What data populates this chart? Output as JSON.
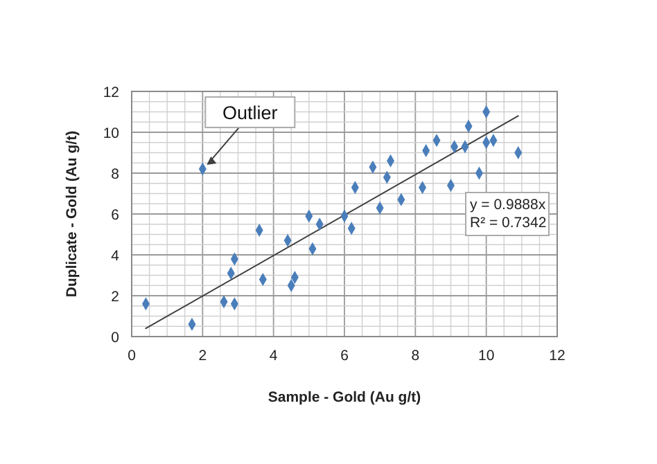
{
  "chart_data": {
    "type": "scatter",
    "xlabel": "Sample - Gold (Au g/t)",
    "ylabel": "Duplicate - Gold (Au g/t)",
    "xlim": [
      0,
      12
    ],
    "xticks": [
      0,
      2,
      4,
      6,
      8,
      10,
      12
    ],
    "ylim": [
      0,
      12
    ],
    "yticks": [
      0,
      2,
      4,
      6,
      8,
      10,
      12
    ],
    "grid": true,
    "marker": "diamond",
    "series": [
      {
        "color": "#4a7ebb",
        "x": [
          0.4,
          1.7,
          2.0,
          2.6,
          2.8,
          2.9,
          2.9,
          3.6,
          3.7,
          4.4,
          4.5,
          4.6,
          5.0,
          5.1,
          5.3,
          6.0,
          6.2,
          6.3,
          6.8,
          7.0,
          7.2,
          7.3,
          7.6,
          8.2,
          8.3,
          8.6,
          9.0,
          9.1,
          9.4,
          9.8,
          9.5,
          10.0,
          10.0,
          10.2,
          10.9
        ],
        "values": [
          1.6,
          0.6,
          8.2,
          1.7,
          3.1,
          3.8,
          1.6,
          5.2,
          2.8,
          4.7,
          2.5,
          2.9,
          5.9,
          4.3,
          5.5,
          5.9,
          5.3,
          7.3,
          8.3,
          6.3,
          7.8,
          8.6,
          6.7,
          7.3,
          9.1,
          9.6,
          7.4,
          9.3,
          9.3,
          8.0,
          10.3,
          11.0,
          9.5,
          9.6,
          9.0
        ]
      },
      {
        "type": "line",
        "color": "#404040",
        "marker": "none",
        "line_style": "solid",
        "x": [
          0.4,
          10.9
        ],
        "values": [
          0.4,
          10.8
        ]
      }
    ],
    "annotations": [
      {
        "text": "Outlier",
        "x": 2.0,
        "y": 8.2
      },
      "y = 0.9888x",
      "R² = 0.7342"
    ]
  }
}
